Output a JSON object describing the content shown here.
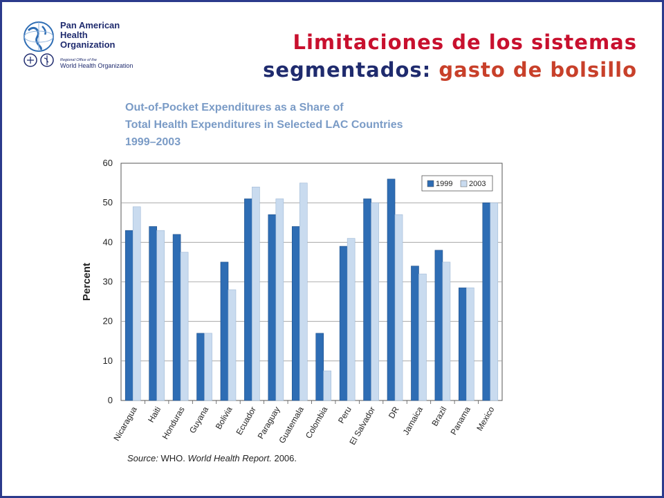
{
  "logo": {
    "name_lines": [
      "Pan American",
      "Health",
      "Organization"
    ],
    "regional_office": "Regional Office of the",
    "who": "World Health Organization"
  },
  "slide": {
    "title_line1": "Limitaciones de los sistemas",
    "title_line2_a": "segmentados:",
    "title_line2_b": "gasto de bolsillo"
  },
  "colors": {
    "border": "#2b3a8c",
    "title_red": "#c8102e",
    "title_navy": "#1f2b6e",
    "title_orange": "#c8402a",
    "figure_title": "#7a9bc6",
    "bar_1999": "#2e6db4",
    "bar_2003": "#c9dbef"
  },
  "chart_data": {
    "type": "bar",
    "title": "Out-of-Pocket Expenditures as a Share of",
    "title_line2": "Total Health Expenditures in Selected LAC Countries",
    "title_line3": "1999–2003",
    "xlabel": "",
    "ylabel": "Percent",
    "ylim": [
      0,
      60
    ],
    "yticks": [
      0,
      10,
      20,
      30,
      40,
      50,
      60
    ],
    "grid": true,
    "legend_position": "top-right",
    "categories": [
      "Nicaragua",
      "Haiti",
      "Honduras",
      "Guyana",
      "Bolivia",
      "Ecuador",
      "Paraguay",
      "Guatemala",
      "Colombia",
      "Peru",
      "El Salvador",
      "DR",
      "Jamaica",
      "Brazil",
      "Panama",
      "Mexico"
    ],
    "series": [
      {
        "name": "1999",
        "values": [
          43,
          44,
          42,
          17,
          35,
          51,
          47,
          44,
          17,
          39,
          51,
          56,
          34,
          38,
          28.5,
          50
        ]
      },
      {
        "name": "2003",
        "values": [
          49,
          43,
          37.5,
          17,
          28,
          54,
          51,
          55,
          7.5,
          41,
          50,
          47,
          32,
          35,
          28.5,
          50
        ]
      }
    ],
    "source_label": "Source:",
    "source_org": "WHO.",
    "source_work": "World Health Report.",
    "source_year": "2006."
  }
}
